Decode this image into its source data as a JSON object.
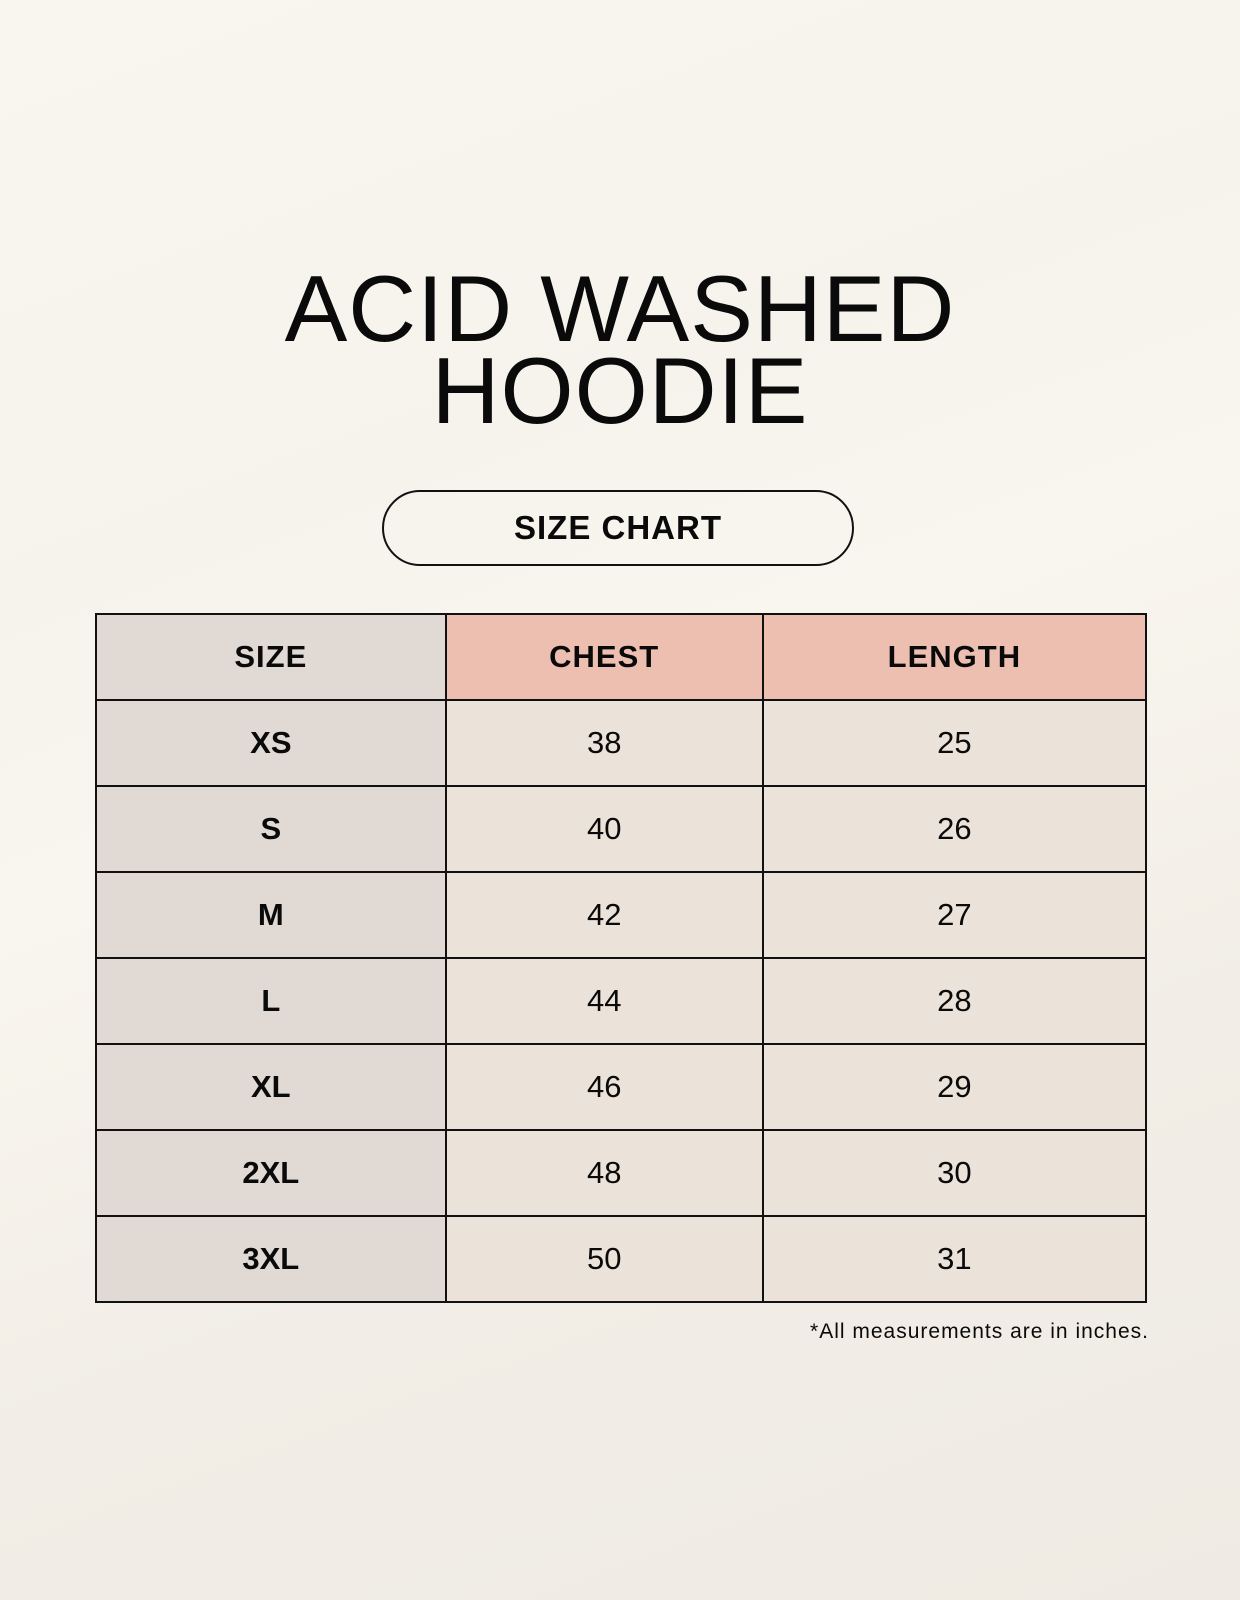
{
  "title": {
    "line1": "ACID WASHED",
    "line2": "HOODIE"
  },
  "subtitle": "SIZE CHART",
  "table": {
    "headers": [
      "SIZE",
      "CHEST",
      "LENGTH"
    ],
    "rows": [
      [
        "XS",
        "38",
        "25"
      ],
      [
        "S",
        "40",
        "26"
      ],
      [
        "M",
        "42",
        "27"
      ],
      [
        "L",
        "44",
        "28"
      ],
      [
        "XL",
        "46",
        "29"
      ],
      [
        "2XL",
        "48",
        "30"
      ],
      [
        "3XL",
        "50",
        "31"
      ]
    ]
  },
  "footnote": "*All measurements are in inches.",
  "colors": {
    "header_accent": "#edbfb1",
    "size_column": "#e0d9d4",
    "cell": "#ebe3da"
  }
}
